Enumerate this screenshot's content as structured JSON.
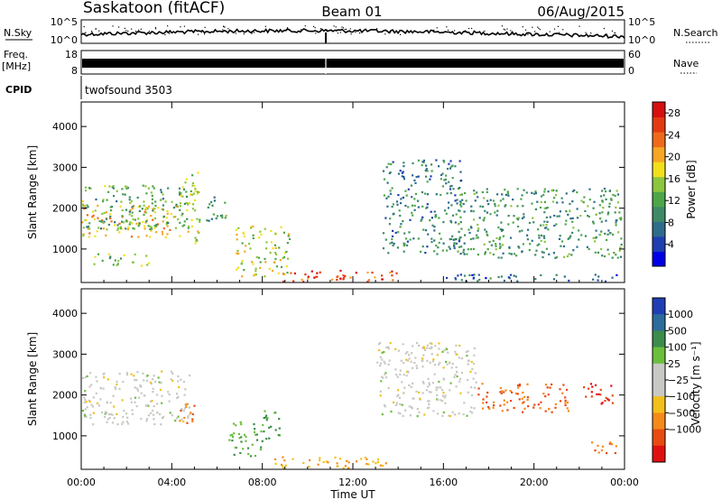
{
  "header": {
    "station": "Saskatoon (fitACF)",
    "beam": "Beam 01",
    "date": "06/Aug/2015"
  },
  "strip": {
    "nsky_label": "N.Sky",
    "nsky_tick_top": "10^5",
    "nsky_tick_bottom": "10^0",
    "nsearch_label": "N.Search",
    "nsearch_tick_top": "10^5",
    "nsearch_tick_bottom": "10^0",
    "freq_label_1": "Freq.",
    "freq_label_2": "[MHz]",
    "freq_tick_top": "18",
    "freq_tick_bottom": "8",
    "nave_label": "Nave",
    "nave_tick_top": "60",
    "nave_tick_bottom": "0",
    "cpid_label": "CPID",
    "cpid_value": "twofsound 3503"
  },
  "chart_data": [
    {
      "type": "heatmap",
      "panel": "power",
      "xlabel": "Time UT",
      "ylabel": "Slant Range [km]",
      "x_ticks": [
        "00:00",
        "04:00",
        "08:00",
        "12:00",
        "16:00",
        "20:00",
        "00:00"
      ],
      "y_ticks": [
        1000,
        2000,
        3000,
        4000
      ],
      "xlim_hours": [
        0,
        24
      ],
      "ylim_km": [
        180,
        4600
      ],
      "colorbar": {
        "label": "Power [dB]",
        "ticks": [
          4,
          8,
          12,
          16,
          20,
          24,
          28
        ],
        "range": [
          0,
          30
        ],
        "colors": [
          "#0000e6",
          "#1f3fb0",
          "#2e6c8c",
          "#3f8a66",
          "#4da64a",
          "#8cc63f",
          "#f2e01a",
          "#f5a623",
          "#ee6a1a",
          "#e43a12",
          "#d60f0f"
        ]
      },
      "regions": [
        {
          "t0": 0.0,
          "t1": 4.2,
          "r0": 1300,
          "r1": 2100,
          "level": 20
        },
        {
          "t0": 0.0,
          "t1": 4.8,
          "r0": 1500,
          "r1": 2600,
          "level": 12
        },
        {
          "t0": 0.5,
          "t1": 3.0,
          "r0": 600,
          "r1": 900,
          "level": 14
        },
        {
          "t0": 4.3,
          "t1": 5.2,
          "r0": 1100,
          "r1": 2900,
          "level": 16
        },
        {
          "t0": 5.5,
          "t1": 6.4,
          "r0": 1600,
          "r1": 2300,
          "level": 10
        },
        {
          "t0": 6.8,
          "t1": 9.2,
          "r0": 350,
          "r1": 1600,
          "level": 16
        },
        {
          "t0": 8.8,
          "t1": 14.0,
          "r0": 200,
          "r1": 500,
          "level": 26
        },
        {
          "t0": 13.3,
          "t1": 16.8,
          "r0": 900,
          "r1": 3200,
          "level": 8
        },
        {
          "t0": 16.5,
          "t1": 24.0,
          "r0": 800,
          "r1": 2500,
          "level": 10
        },
        {
          "t0": 16.0,
          "t1": 24.0,
          "r0": 200,
          "r1": 400,
          "level": 6
        }
      ]
    },
    {
      "type": "heatmap",
      "panel": "velocity",
      "xlabel": "Time UT",
      "ylabel": "Slant Range [km]",
      "x_ticks": [
        "00:00",
        "04:00",
        "08:00",
        "12:00",
        "16:00",
        "20:00",
        "00:00"
      ],
      "y_ticks": [
        1000,
        2000,
        3000,
        4000
      ],
      "xlim_hours": [
        0,
        24
      ],
      "ylim_km": [
        180,
        4600
      ],
      "colorbar": {
        "label": "Velocity [m s⁻¹]",
        "ticks": [
          "1000",
          "500",
          "100",
          "25",
          "−25",
          "−100",
          "−500",
          "−1000"
        ],
        "colors": [
          "#1e3fb4",
          "#2b6c9c",
          "#3c8c4c",
          "#6bbf3c",
          "#c8c8c4",
          "#c8c8c4",
          "#f2c01a",
          "#f58a1a",
          "#e84a12",
          "#e01010"
        ]
      },
      "regions": [
        {
          "t0": 0.0,
          "t1": 4.8,
          "r0": 1300,
          "r1": 2600,
          "level": 0
        },
        {
          "t0": 4.3,
          "t1": 5.0,
          "r0": 1300,
          "r1": 1900,
          "level": -500
        },
        {
          "t0": 6.5,
          "t1": 8.0,
          "r0": 500,
          "r1": 1400,
          "level": 100
        },
        {
          "t0": 8.5,
          "t1": 13.8,
          "r0": 200,
          "r1": 500,
          "level": -100
        },
        {
          "t0": 8.0,
          "t1": 8.8,
          "r0": 900,
          "r1": 1700,
          "level": 100
        },
        {
          "t0": 13.0,
          "t1": 17.5,
          "r0": 1500,
          "r1": 3300,
          "level": 0
        },
        {
          "t0": 17.5,
          "t1": 21.5,
          "r0": 1600,
          "r1": 2300,
          "level": -500
        },
        {
          "t0": 22.0,
          "t1": 23.5,
          "r0": 1800,
          "r1": 2300,
          "level": -1000
        },
        {
          "t0": 22.5,
          "t1": 24.0,
          "r0": 600,
          "r1": 900,
          "level": -500
        }
      ]
    }
  ]
}
